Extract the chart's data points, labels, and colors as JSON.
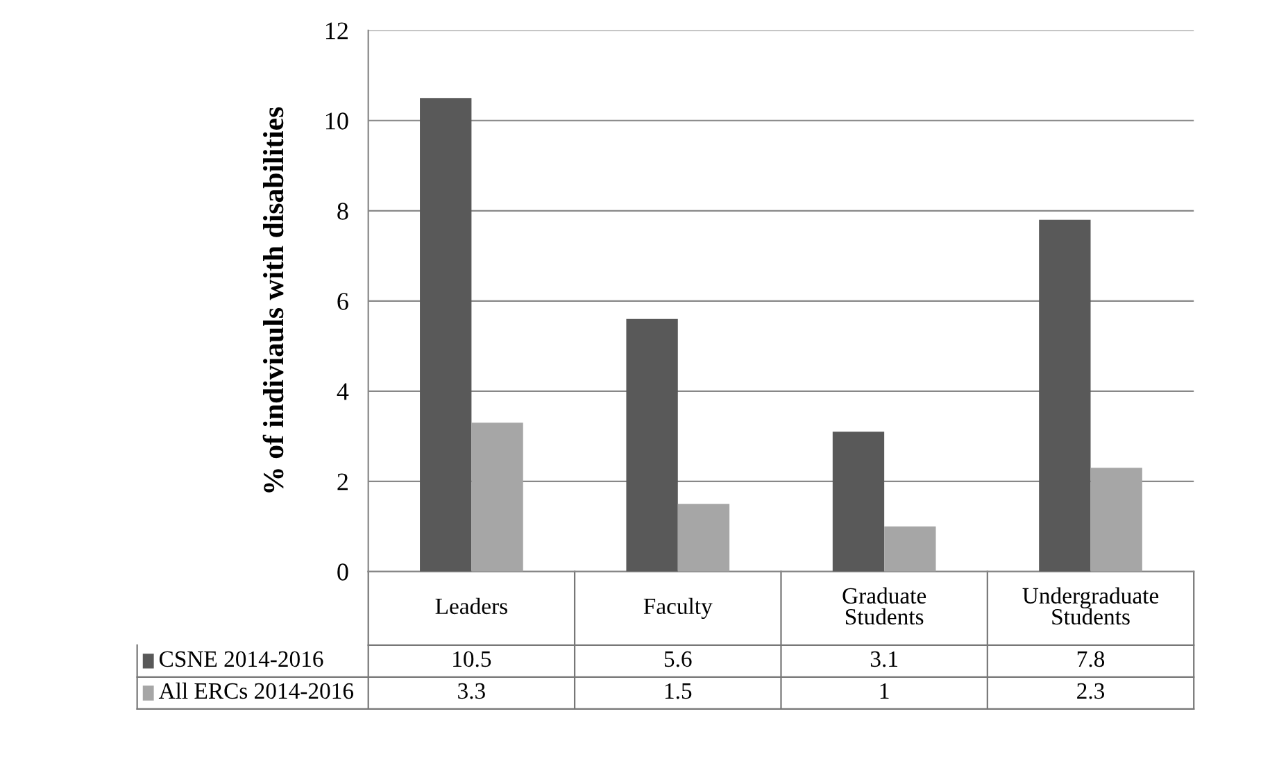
{
  "chart_data": {
    "type": "bar",
    "ylabel": "% of indiviauls with disabilities",
    "categories": [
      "Leaders",
      "Faculty",
      "Graduate\nStudents",
      "Undergraduate\nStudents"
    ],
    "series": [
      {
        "name": "CSNE 2014-2016",
        "color": "#595959",
        "values": [
          10.5,
          5.6,
          3.1,
          7.8
        ]
      },
      {
        "name": "All ERCs 2014-2016",
        "color": "#a6a6a6",
        "values": [
          3.3,
          1.5,
          1,
          2.3
        ]
      }
    ],
    "ylim": [
      0,
      12
    ],
    "yticks": [
      0,
      2,
      4,
      6,
      8,
      10,
      12
    ],
    "grid": "y",
    "data_labels": true,
    "legend": "bottom"
  }
}
